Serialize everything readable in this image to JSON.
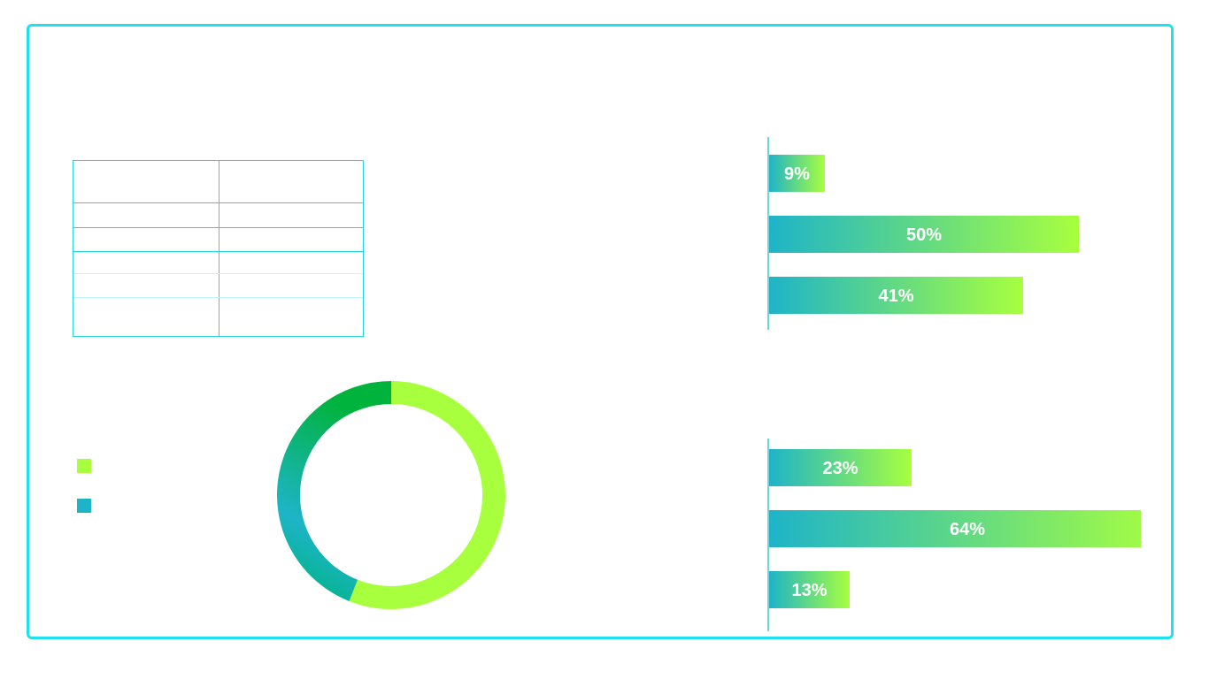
{
  "colors": {
    "frame": "#1fe0ee",
    "teal": "#1eb4c8",
    "lime": "#a8ff3e",
    "green": "#00b33c",
    "table_line": "#23d4e3"
  },
  "legend": [
    {
      "color": "#a8ff3e"
    },
    {
      "color": "#1eb4c8"
    }
  ],
  "chart_data": [
    {
      "type": "pie",
      "hole": true,
      "values": [
        0.56,
        0.44
      ],
      "colors": [
        "#a8ff3e",
        "#1eb4c8"
      ],
      "title": ""
    },
    {
      "type": "bar",
      "orientation": "horizontal",
      "values": [
        9,
        50,
        41
      ],
      "labels": [
        "9%",
        "50%",
        "41%"
      ],
      "title": ""
    },
    {
      "type": "bar",
      "orientation": "horizontal",
      "values": [
        23,
        64,
        13
      ],
      "labels": [
        "23%",
        "64%",
        "13%"
      ],
      "title": ""
    }
  ]
}
